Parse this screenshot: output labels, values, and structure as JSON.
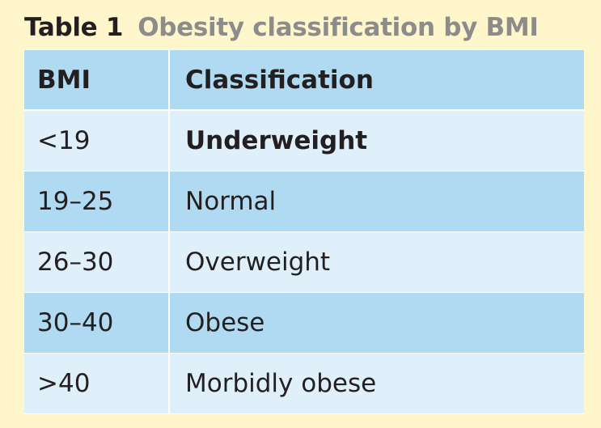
{
  "caption": {
    "label": "Table 1",
    "title": "Obesity classification by BMI"
  },
  "table": {
    "headers": [
      "BMI",
      "Classification"
    ],
    "rows": [
      {
        "bmi": "<19",
        "classification": "Underweight"
      },
      {
        "bmi": "19–25",
        "classification": "Normal"
      },
      {
        "bmi": "26–30",
        "classification": "Overweight"
      },
      {
        "bmi": "30–40",
        "classification": "Obese"
      },
      {
        "bmi": ">40",
        "classification": "Morbidly obese"
      }
    ]
  },
  "colors": {
    "background": "#FFF6CC",
    "header_band": "#B0DAF2",
    "row_light": "#E0F0FA",
    "row_dark": "#B0DAF2",
    "caption_label": "#231F20",
    "caption_title": "#8C8C8C"
  }
}
